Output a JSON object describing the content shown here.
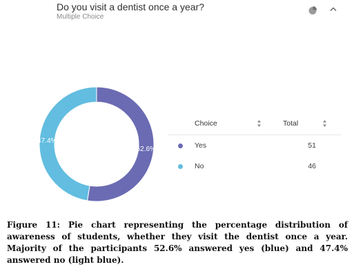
{
  "header": {
    "question": "Do you visit a dentist once a year?",
    "subtitle": "Multiple Choice",
    "pie_icon": "pie-chart-icon",
    "collapse_icon": "chevron-up-icon"
  },
  "table": {
    "col_choice": "Choice",
    "col_total": "Total",
    "rows": [
      {
        "label": "Yes",
        "total": "51",
        "color": "#6b6bb3"
      },
      {
        "label": "No",
        "total": "46",
        "color": "#62bde0"
      }
    ]
  },
  "chart_data": {
    "type": "pie",
    "style": "donut",
    "categories": [
      "Yes",
      "No"
    ],
    "values": [
      52.6,
      47.4
    ],
    "counts": [
      51,
      46
    ],
    "data_labels": [
      "52.6%",
      "47.4%"
    ],
    "colors": [
      "#6b6bb3",
      "#62bde0"
    ]
  },
  "caption": {
    "label": "Figure 11:",
    "text": " Pie chart representing the percentage distribution of awareness of students, whether they visit the dentist once a year. Majority of the participants 52.6% answered yes (blue) and 47.4% answered no (light blue)."
  }
}
